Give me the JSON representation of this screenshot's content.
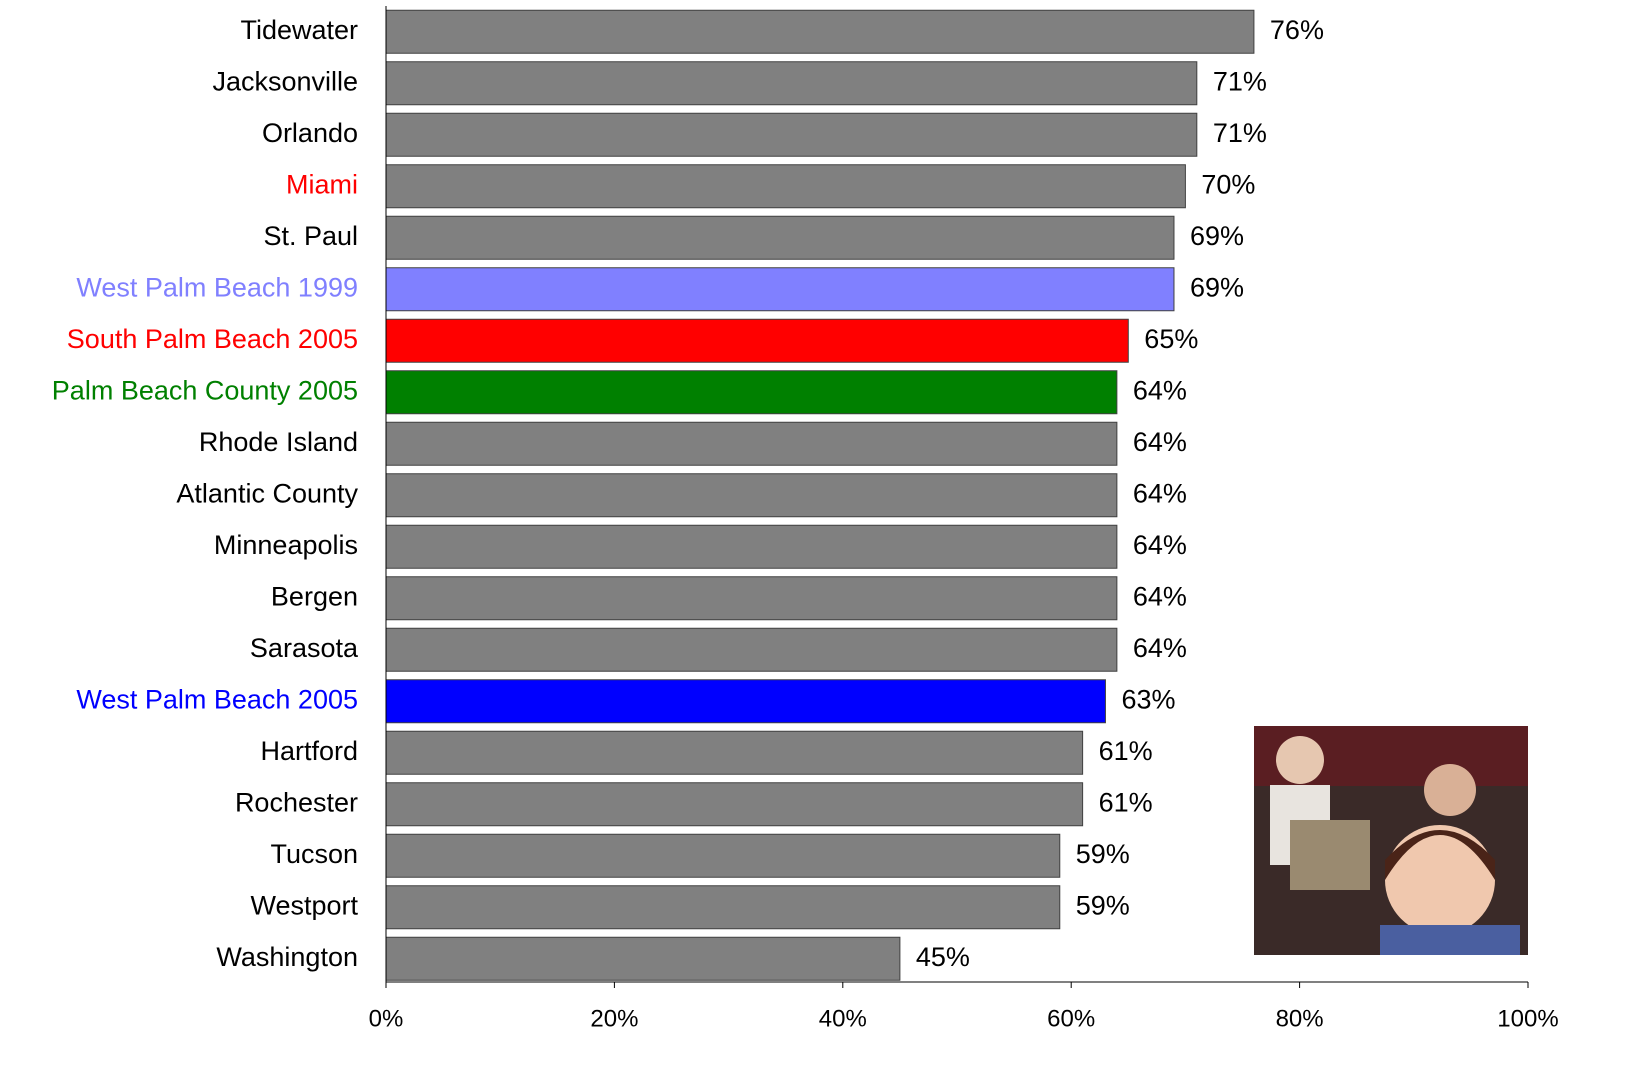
{
  "chart_data": {
    "type": "bar",
    "orientation": "horizontal",
    "categories": [
      "Tidewater",
      "Jacksonville",
      "Orlando",
      "Miami",
      "St. Paul",
      "West Palm Beach 1999",
      "South Palm Beach 2005",
      "Palm Beach County 2005",
      "Rhode Island",
      "Atlantic County",
      "Minneapolis",
      "Bergen",
      "Sarasota",
      "West Palm Beach 2005",
      "Hartford",
      "Rochester",
      "Tucson",
      "Westport",
      "Washington"
    ],
    "values": [
      76,
      71,
      71,
      70,
      69,
      69,
      65,
      64,
      64,
      64,
      64,
      64,
      64,
      63,
      61,
      61,
      59,
      59,
      45
    ],
    "value_labels": [
      "76%",
      "71%",
      "71%",
      "70%",
      "69%",
      "69%",
      "65%",
      "64%",
      "64%",
      "64%",
      "64%",
      "64%",
      "64%",
      "63%",
      "61%",
      "61%",
      "59%",
      "59%",
      "45%"
    ],
    "colors": [
      "#808080",
      "#808080",
      "#808080",
      "#808080",
      "#808080",
      "#8080ff",
      "#ff0000",
      "#008000",
      "#808080",
      "#808080",
      "#808080",
      "#808080",
      "#808080",
      "#0000ff",
      "#808080",
      "#808080",
      "#808080",
      "#808080",
      "#808080"
    ],
    "label_colors": [
      "#000000",
      "#000000",
      "#000000",
      "#ff0000",
      "#000000",
      "#8080ff",
      "#ff0000",
      "#008000",
      "#000000",
      "#000000",
      "#000000",
      "#000000",
      "#000000",
      "#0000ff",
      "#000000",
      "#000000",
      "#000000",
      "#000000",
      "#000000"
    ],
    "xlim": [
      0,
      100
    ],
    "xticks": [
      {
        "value": 0,
        "label": "0%"
      },
      {
        "value": 20,
        "label": "20%"
      },
      {
        "value": 40,
        "label": "40%"
      },
      {
        "value": 60,
        "label": "60%"
      },
      {
        "value": 80,
        "label": "80%"
      },
      {
        "value": 100,
        "label": "100%"
      }
    ]
  }
}
